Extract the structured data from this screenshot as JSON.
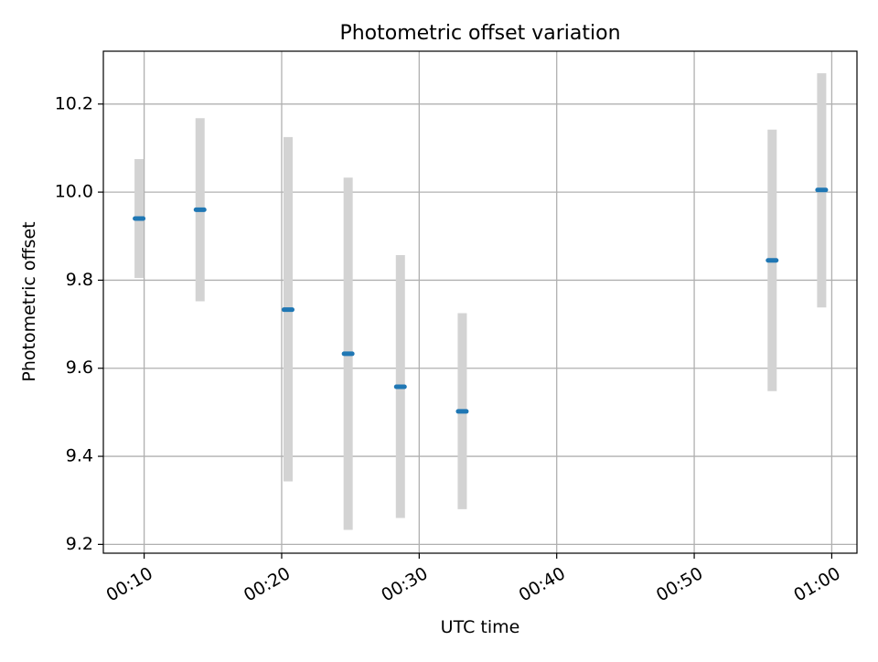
{
  "chart_data": {
    "type": "scatter",
    "title": "Photometric offset variation",
    "xlabel": "UTC time",
    "ylabel": "Photometric offset",
    "x_axis_type": "time",
    "xlim": [
      "00:07:02",
      "01:01:50"
    ],
    "ylim": [
      9.18,
      10.32
    ],
    "grid": true,
    "legend": "none",
    "x_ticks": [
      "00:10",
      "00:20",
      "00:30",
      "00:40",
      "00:50",
      "01:00"
    ],
    "y_ticks": [
      9.2,
      9.4,
      9.6,
      9.8,
      10.0,
      10.2
    ],
    "y_tick_labels": [
      "9.2",
      "9.4",
      "9.6",
      "9.8",
      "10.0",
      "10.2"
    ],
    "points": [
      {
        "x": "00:09:38",
        "y": 9.94,
        "err_low": 9.805,
        "err_high": 10.075
      },
      {
        "x": "00:14:04",
        "y": 9.96,
        "err_low": 9.752,
        "err_high": 10.168
      },
      {
        "x": "00:20:28",
        "y": 9.733,
        "err_low": 9.343,
        "err_high": 10.125
      },
      {
        "x": "00:24:50",
        "y": 9.633,
        "err_low": 9.233,
        "err_high": 10.033
      },
      {
        "x": "00:28:38",
        "y": 9.558,
        "err_low": 9.26,
        "err_high": 9.857
      },
      {
        "x": "00:33:08",
        "y": 9.502,
        "err_low": 9.28,
        "err_high": 9.725
      },
      {
        "x": "00:55:40",
        "y": 9.845,
        "err_low": 9.548,
        "err_high": 10.142
      },
      {
        "x": "00:59:16",
        "y": 10.005,
        "err_low": 9.738,
        "err_high": 10.27
      }
    ],
    "colors": {
      "marker": "#1f77b4",
      "errorbar": "#d3d3d3",
      "grid": "#b0b0b0",
      "axes": "#000000"
    }
  }
}
